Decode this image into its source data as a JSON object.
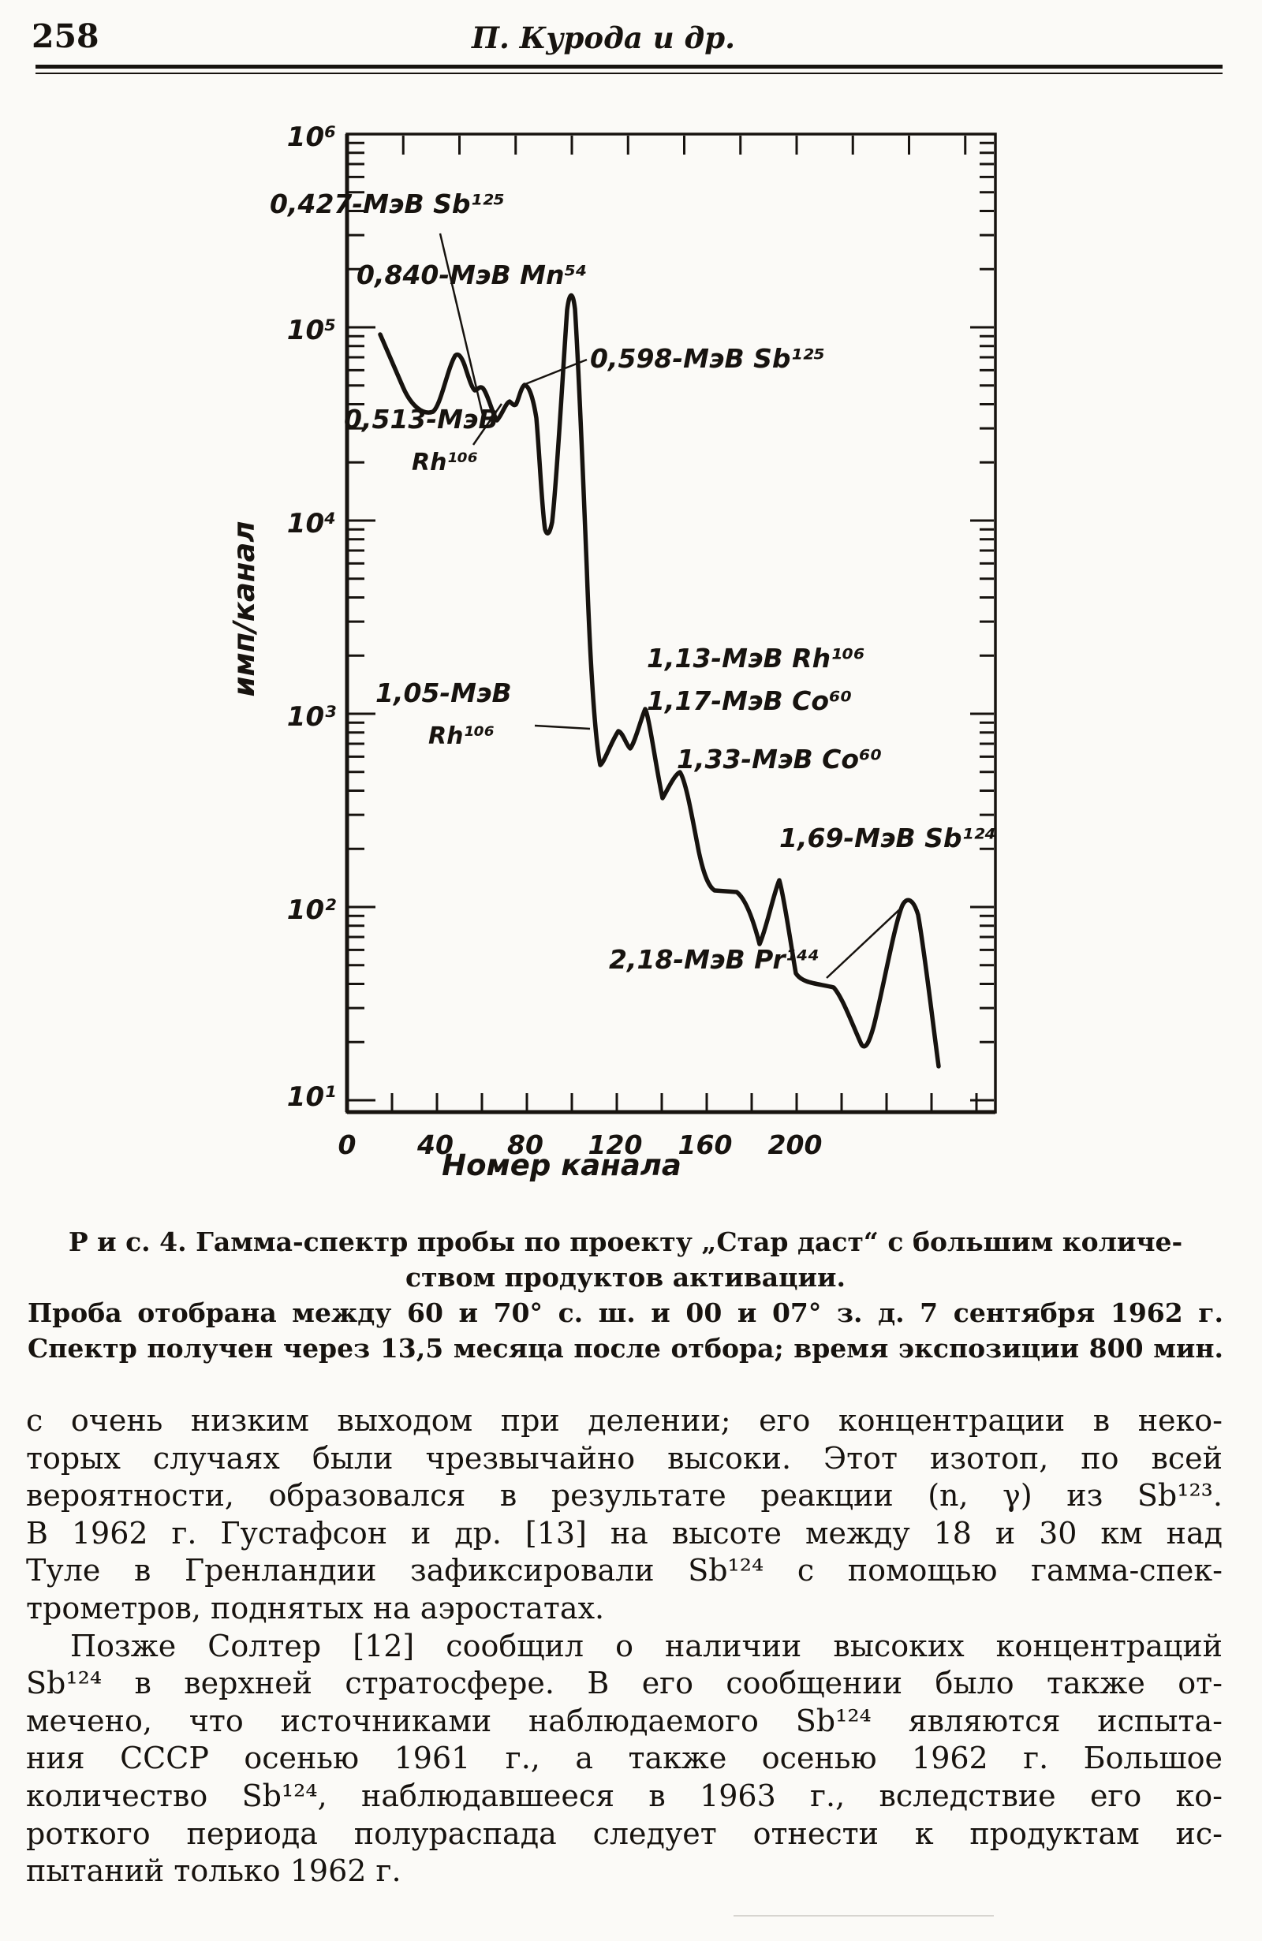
{
  "page": {
    "number": "258",
    "running_head": "П. Курода и др."
  },
  "chart": {
    "ylabel": "имп/канал",
    "xlabel": "Номер канала",
    "y_tick_labels": [
      "10⁶",
      "10⁵",
      "10⁴",
      "10³",
      "10²",
      "10¹"
    ],
    "x_tick_labels": [
      "0",
      "40",
      "80",
      "120",
      "160",
      "200"
    ],
    "labels": {
      "l427": "0,427-МэВ Sb¹²⁵",
      "l840": "0,840-МэВ Mn⁵⁴",
      "l598": "0,598-МэВ Sb¹²⁵",
      "l513a": "0,513-МэВ",
      "l513b": "Rh¹⁰⁶",
      "l105a": "1,05-МэВ",
      "l105b": "Rh¹⁰⁶",
      "l113": "1,13-МэВ Rh¹⁰⁶",
      "l117": "1,17-МэВ Co⁶⁰",
      "l133": "1,33-МэВ Co⁶⁰",
      "l169": "1,69-МэВ Sb¹²⁴",
      "l218": "2,18-МэВ Pr¹⁴⁴"
    }
  },
  "chart_data": {
    "type": "line",
    "title": "Гамма-спектр пробы по проекту „Стар даст“ с большим количеством продуктов активации",
    "xlabel": "Номер канала",
    "ylabel": "имп/канал",
    "y_scale": "log",
    "ylim": [
      10,
      1000000
    ],
    "xlim": [
      0,
      290
    ],
    "x_ticks": [
      0,
      40,
      80,
      120,
      160,
      200
    ],
    "y_ticks": [
      1000000,
      100000,
      10000,
      1000,
      100,
      10
    ],
    "grid": false,
    "legend": false,
    "peaks": [
      {
        "energy": "0,427 МэВ",
        "isotope": "Sb¹²⁵",
        "channel": 51,
        "counts": 73000
      },
      {
        "energy": "0,513 МэВ",
        "isotope": "Rh¹⁰⁶",
        "channel": 72,
        "counts": 42000
      },
      {
        "energy": "0,598 МэВ",
        "isotope": "Sb¹²⁵",
        "channel": 80,
        "counts": 50000
      },
      {
        "energy": "0,840 МэВ",
        "isotope": "Mn⁵⁴",
        "channel": 100,
        "counts": 160000
      },
      {
        "energy": "1,05 МэВ",
        "isotope": "Rh¹⁰⁶",
        "channel": 122,
        "counts": 860
      },
      {
        "energy": "1,13 МэВ",
        "isotope": "Rh¹⁰⁶",
        "channel": 134,
        "counts": 1060
      },
      {
        "energy": "1,17 МэВ",
        "isotope": "Co⁶⁰",
        "channel": 134,
        "counts": 1060
      },
      {
        "energy": "1,33 МэВ",
        "isotope": "Co⁶⁰",
        "channel": 150,
        "counts": 490
      },
      {
        "energy": "1,69 МэВ",
        "isotope": "Sb¹²⁴",
        "channel": 194,
        "counts": 140
      },
      {
        "energy": "2,18 МэВ",
        "isotope": "Pr¹⁴⁴",
        "channel": 250,
        "counts": 112
      }
    ],
    "series": [
      {
        "name": "гамма-спектр",
        "points": [
          [
            16,
            100000
          ],
          [
            30,
            52000
          ],
          [
            38,
            36000
          ],
          [
            42,
            37000
          ],
          [
            51,
            73000
          ],
          [
            57,
            39000
          ],
          [
            61,
            41000
          ],
          [
            68,
            29000
          ],
          [
            72,
            42000
          ],
          [
            76,
            38000
          ],
          [
            80,
            50000
          ],
          [
            85,
            35000
          ],
          [
            88,
            9500
          ],
          [
            91,
            9000
          ],
          [
            100,
            160000
          ],
          [
            108,
            530
          ],
          [
            115,
            820
          ],
          [
            120,
            780
          ],
          [
            122,
            860
          ],
          [
            127,
            760
          ],
          [
            134,
            1060
          ],
          [
            142,
            360
          ],
          [
            150,
            490
          ],
          [
            158,
            205
          ],
          [
            164,
            125
          ],
          [
            174,
            124
          ],
          [
            185,
            64
          ],
          [
            194,
            140
          ],
          [
            201,
            44
          ],
          [
            218,
            40
          ],
          [
            232,
            18.5
          ],
          [
            250,
            112
          ],
          [
            257,
            100
          ],
          [
            265,
            16
          ]
        ]
      }
    ]
  },
  "figure": {
    "caption_line1": "Р и с.  4. Гамма-спектр пробы по проекту „Стар даст“ с большим количе-",
    "caption_line2": "ством продуктов активации.",
    "caption_line3": "Проба отобрана между 60 и 70° с. ш. и 00 и 07° з. д. 7 сентября 1962 г.",
    "caption_line4": "Спектр получен через 13,5 месяца после отбора; время экспозиции 800 мин."
  },
  "body": {
    "p1": [
      "с очень низким выходом при делении; его концентрации в неко-",
      "торых случаях были чрезвычайно высоки. Этот изотоп, по всей",
      "вероятности, образовался в результате реакции (n, γ) из Sb¹²³.",
      "В 1962 г. Густафсон и др. [13] на высоте между 18 и 30 км над",
      "Туле в Гренландии зафиксировали Sb¹²⁴ с помощью гамма-спек-",
      "трометров, поднятых на аэростатах."
    ],
    "p2": [
      "Позже Солтер [12] сообщил о наличии высоких концентраций",
      "Sb¹²⁴ в верхней стратосфере. В его сообщении было также от-",
      "мечено, что источниками наблюдаемого Sb¹²⁴ являются испыта-",
      "ния СССР осенью 1961 г., а также осенью 1962 г. Большое",
      "количество Sb¹²⁴, наблюдавшееся в 1963 г., вследствие его ко-",
      "роткого периода полураспада следует отнести к продуктам ис-",
      "пытаний только 1962 г."
    ]
  }
}
